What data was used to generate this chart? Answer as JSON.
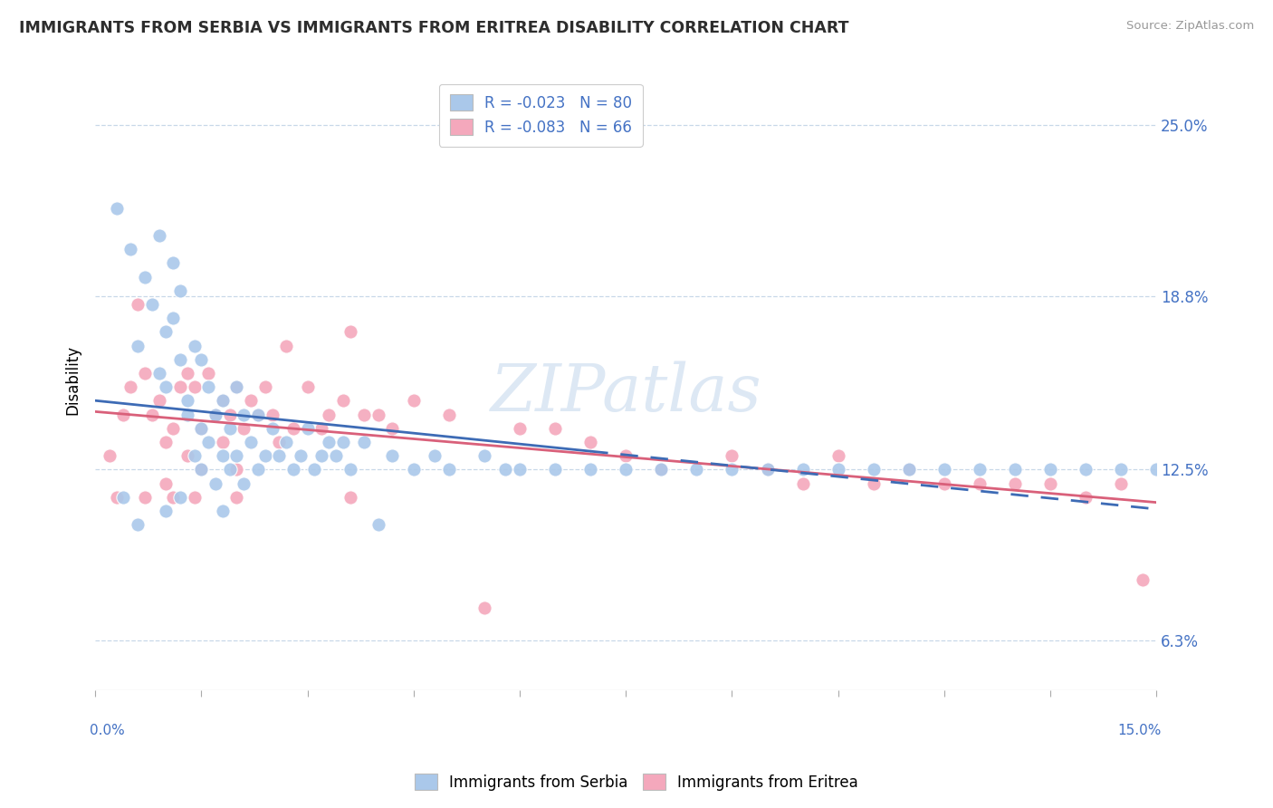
{
  "title": "IMMIGRANTS FROM SERBIA VS IMMIGRANTS FROM ERITREA DISABILITY CORRELATION CHART",
  "source": "Source: ZipAtlas.com",
  "ylabel": "Disability",
  "xlim": [
    0.0,
    15.0
  ],
  "ylim": [
    4.5,
    27.0
  ],
  "yticks": [
    6.3,
    12.5,
    18.8,
    25.0
  ],
  "ytick_labels": [
    "6.3%",
    "12.5%",
    "18.8%",
    "25.0%"
  ],
  "serbia_color": "#aac8ea",
  "eritrea_color": "#f4a8bc",
  "serbia_line_color": "#3d6bb5",
  "eritrea_line_color": "#d9607a",
  "serbia_R": -0.023,
  "serbia_N": 80,
  "eritrea_R": -0.083,
  "eritrea_N": 66,
  "watermark_color": "#dde8f4",
  "background_color": "#ffffff",
  "grid_color": "#c8d8e8",
  "serbia_name": "Immigrants from Serbia",
  "eritrea_name": "Immigrants from Eritrea",
  "serbia_x": [
    0.3,
    0.5,
    0.6,
    0.7,
    0.8,
    0.9,
    0.9,
    1.0,
    1.0,
    1.1,
    1.1,
    1.2,
    1.2,
    1.3,
    1.3,
    1.4,
    1.4,
    1.5,
    1.5,
    1.5,
    1.6,
    1.6,
    1.7,
    1.7,
    1.8,
    1.8,
    1.9,
    1.9,
    2.0,
    2.0,
    2.1,
    2.1,
    2.2,
    2.3,
    2.3,
    2.4,
    2.5,
    2.6,
    2.7,
    2.8,
    2.9,
    3.0,
    3.1,
    3.2,
    3.3,
    3.4,
    3.5,
    3.6,
    3.8,
    4.0,
    4.2,
    4.5,
    4.8,
    5.0,
    5.5,
    5.8,
    6.0,
    6.5,
    7.0,
    7.5,
    8.0,
    8.5,
    9.0,
    9.5,
    10.0,
    10.5,
    11.0,
    11.5,
    12.0,
    12.5,
    13.0,
    13.5,
    14.0,
    14.5,
    15.0,
    0.4,
    0.6,
    1.0,
    1.2,
    1.8
  ],
  "serbia_y": [
    22.0,
    20.5,
    17.0,
    19.5,
    18.5,
    21.0,
    16.0,
    17.5,
    15.5,
    20.0,
    18.0,
    19.0,
    16.5,
    15.0,
    14.5,
    17.0,
    13.0,
    16.5,
    14.0,
    12.5,
    15.5,
    13.5,
    14.5,
    12.0,
    15.0,
    13.0,
    14.0,
    12.5,
    15.5,
    13.0,
    14.5,
    12.0,
    13.5,
    14.5,
    12.5,
    13.0,
    14.0,
    13.0,
    13.5,
    12.5,
    13.0,
    14.0,
    12.5,
    13.0,
    13.5,
    13.0,
    13.5,
    12.5,
    13.5,
    10.5,
    13.0,
    12.5,
    13.0,
    12.5,
    13.0,
    12.5,
    12.5,
    12.5,
    12.5,
    12.5,
    12.5,
    12.5,
    12.5,
    12.5,
    12.5,
    12.5,
    12.5,
    12.5,
    12.5,
    12.5,
    12.5,
    12.5,
    12.5,
    12.5,
    12.5,
    11.5,
    10.5,
    11.0,
    11.5,
    11.0
  ],
  "eritrea_x": [
    0.2,
    0.4,
    0.5,
    0.6,
    0.7,
    0.8,
    0.9,
    1.0,
    1.0,
    1.1,
    1.2,
    1.3,
    1.3,
    1.4,
    1.5,
    1.5,
    1.6,
    1.7,
    1.8,
    1.8,
    1.9,
    2.0,
    2.0,
    2.1,
    2.2,
    2.3,
    2.4,
    2.5,
    2.6,
    2.7,
    2.8,
    3.0,
    3.2,
    3.3,
    3.5,
    3.6,
    3.8,
    4.0,
    4.2,
    4.5,
    5.0,
    5.5,
    6.0,
    6.5,
    7.0,
    7.5,
    8.0,
    9.0,
    9.5,
    10.0,
    10.5,
    11.0,
    11.5,
    12.0,
    12.5,
    13.0,
    13.5,
    14.0,
    14.5,
    14.8,
    0.3,
    0.7,
    1.1,
    1.4,
    2.0,
    3.6
  ],
  "eritrea_y": [
    13.0,
    14.5,
    15.5,
    18.5,
    16.0,
    14.5,
    15.0,
    13.5,
    12.0,
    14.0,
    15.5,
    16.0,
    13.0,
    15.5,
    14.0,
    12.5,
    16.0,
    14.5,
    15.0,
    13.5,
    14.5,
    15.5,
    12.5,
    14.0,
    15.0,
    14.5,
    15.5,
    14.5,
    13.5,
    17.0,
    14.0,
    15.5,
    14.0,
    14.5,
    15.0,
    17.5,
    14.5,
    14.5,
    14.0,
    15.0,
    14.5,
    7.5,
    14.0,
    14.0,
    13.5,
    13.0,
    12.5,
    13.0,
    12.5,
    12.0,
    13.0,
    12.0,
    12.5,
    12.0,
    12.0,
    12.0,
    12.0,
    11.5,
    12.0,
    8.5,
    11.5,
    11.5,
    11.5,
    11.5,
    11.5,
    11.5
  ]
}
